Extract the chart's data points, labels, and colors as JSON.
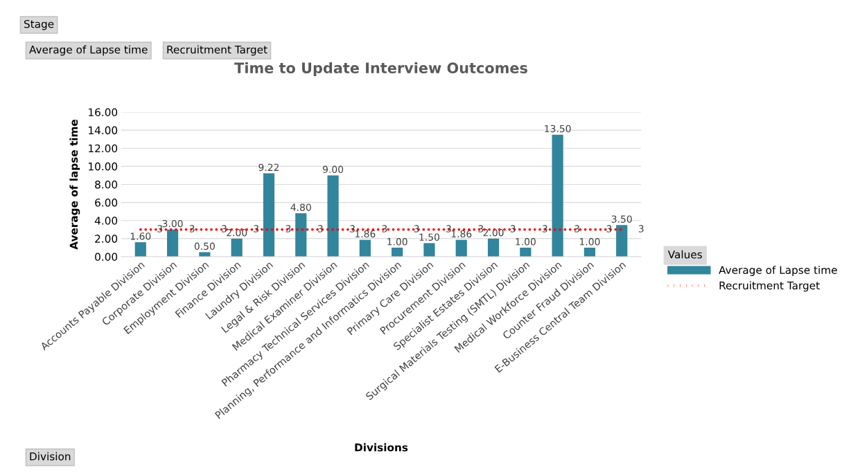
{
  "chart_data": {
    "type": "bar",
    "title": "Time to Update Interview Outcomes",
    "xlabel": "Divisions",
    "ylabel": "Average of lapse time",
    "legend_title": "Values",
    "legend": "right",
    "categories": [
      "Accounts Payable Division",
      "Corporate Division",
      "Employment Division",
      "Finance Division",
      "Laundry Division",
      "Legal & Risk Division",
      "Medical Examiner Division",
      "Pharmacy Technical Services Division",
      "Planning, Performance and Informatics Division",
      "Primary Care Division",
      "Procurement Division",
      "Specialist Estates Division",
      "Surgical Materials Testing (SMTL) Division",
      "Medical Workforce Division",
      "Counter Fraud Division",
      "E-Business Central Team Division"
    ],
    "series": [
      {
        "name": "Average of Lapse time",
        "color": "#31859c",
        "values": [
          1.6,
          3.0,
          0.5,
          2.0,
          9.22,
          4.8,
          9.0,
          1.86,
          1.0,
          1.5,
          1.86,
          2.0,
          1.0,
          13.5,
          1.0,
          3.5
        ],
        "value_labels": [
          "1.60",
          "3.00",
          "0.50",
          "2.00",
          "9.22",
          "4.80",
          "9.00",
          "1.86",
          "1.00",
          "1.50",
          "1.86",
          "2.00",
          "1.00",
          "13.50",
          "1.00",
          "3.50"
        ]
      },
      {
        "name": "Recruitment Target",
        "type": "line",
        "color": "#ff0000",
        "line_style": "dotted",
        "values": [
          3,
          3,
          3,
          3,
          3,
          3,
          3,
          3,
          3,
          3,
          3,
          3,
          3,
          3,
          3,
          3
        ],
        "value_labels": [
          "3",
          "3",
          "3",
          "3",
          "3",
          "3",
          "3",
          "3",
          "3",
          "3",
          "3",
          "3",
          "3",
          "3",
          "3",
          "3"
        ]
      }
    ],
    "ylim": [
      0,
      16
    ],
    "yticks": [
      {
        "value": 0,
        "label": "0.00"
      },
      {
        "value": 2,
        "label": "2.00"
      },
      {
        "value": 4,
        "label": "4.00"
      },
      {
        "value": 6,
        "label": "6.00"
      },
      {
        "value": 8,
        "label": "8.00"
      },
      {
        "value": 10,
        "label": "10.00"
      },
      {
        "value": 12,
        "label": "12.00"
      },
      {
        "value": 14,
        "label": "14.00"
      },
      {
        "value": 16,
        "label": "16.00"
      }
    ],
    "grid": "y",
    "annotations": [
      "Stage",
      "Average of Lapse time",
      "Recruitment Target",
      "Division"
    ]
  }
}
